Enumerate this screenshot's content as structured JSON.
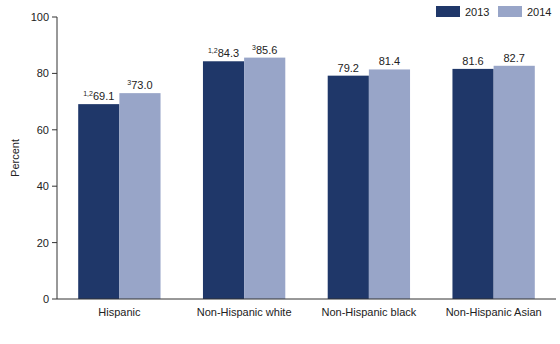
{
  "chart_data": {
    "type": "bar",
    "categories": [
      "Hispanic",
      "Non-Hispanic white",
      "Non-Hispanic black",
      "Non-Hispanic Asian"
    ],
    "series": [
      {
        "name": "2013",
        "color": "#1f3769",
        "values": [
          69.1,
          84.3,
          79.2,
          81.6
        ],
        "footnotes": [
          "1,2",
          "1,2",
          null,
          null
        ]
      },
      {
        "name": "2014",
        "color": "#98a5c8",
        "values": [
          73.0,
          85.6,
          81.4,
          82.7
        ],
        "footnotes": [
          "3",
          "3",
          null,
          null
        ]
      }
    ],
    "y_label": "Percent",
    "ylim": [
      0,
      100
    ],
    "yticks": [
      0,
      20,
      40,
      60,
      80,
      100
    ],
    "grid": false,
    "legend": "upper right",
    "data_labels": true
  }
}
